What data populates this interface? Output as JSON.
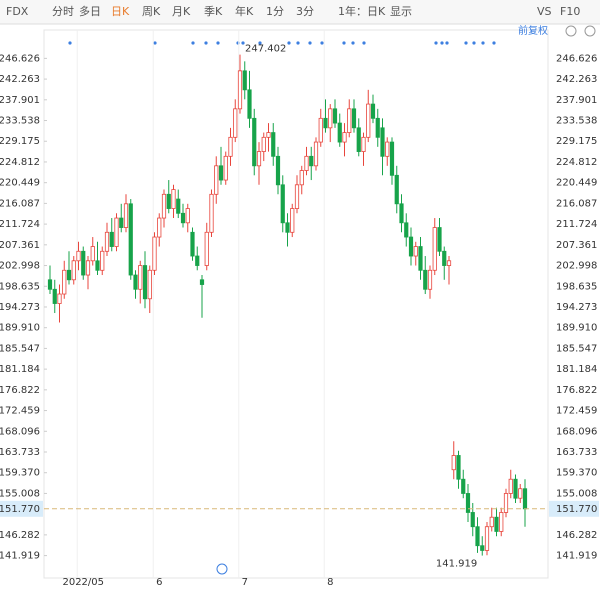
{
  "toolbar": [
    "FDX",
    "分时",
    "多日",
    "日K",
    "周K",
    "月K",
    "季K",
    "年K",
    "1分",
    "3分",
    "1年：日K",
    "显示",
    "VS",
    "F10"
  ],
  "active_tab": "日K",
  "chart_data": {
    "type": "candlestick",
    "adjust_label": "前复权",
    "up_color": "#e8453c",
    "down_color": "#17a34a",
    "ylim": [
      137.2,
      252.6
    ],
    "yticks": [
      246.626,
      242.263,
      237.901,
      233.538,
      229.175,
      224.812,
      220.449,
      216.087,
      211.724,
      207.361,
      202.998,
      198.635,
      194.273,
      {
        "value": 189.91,
        "label": "189.910"
      },
      185.547,
      181.184,
      176.822,
      172.459,
      168.096,
      163.733,
      {
        "value": 159.37,
        "label": "159.370"
      },
      155.008,
      146.282,
      141.919
    ],
    "last_price": {
      "value": 151.77,
      "label": "151.770"
    },
    "categories": [
      null,
      null,
      null,
      null,
      null,
      null,
      null,
      "2022/05",
      null,
      null,
      null,
      null,
      null,
      null,
      null,
      null,
      null,
      null,
      null,
      null,
      null,
      null,
      null,
      "6",
      null,
      null,
      null,
      null,
      null,
      null,
      null,
      null,
      null,
      null,
      null,
      null,
      null,
      null,
      null,
      null,
      null,
      "7",
      null,
      null,
      null,
      null,
      null,
      null,
      null,
      null,
      null,
      null,
      null,
      null,
      null,
      null,
      null,
      null,
      null,
      "8",
      null,
      null,
      null,
      null,
      null,
      null,
      null,
      null,
      null,
      null,
      null,
      null,
      null,
      null,
      null,
      null,
      null,
      null,
      null,
      null,
      null,
      null,
      null,
      null,
      null,
      null,
      null,
      null,
      null,
      null,
      null,
      null,
      null,
      null,
      null,
      null,
      null,
      null,
      null,
      null,
      null
    ],
    "candles": [
      [
        200,
        203,
        197,
        198
      ],
      [
        198,
        200,
        193,
        195
      ],
      [
        195,
        199,
        191,
        197
      ],
      [
        197,
        204,
        196,
        202
      ],
      [
        202,
        206,
        199,
        200
      ],
      [
        200,
        205,
        199,
        204
      ],
      [
        204,
        208,
        202,
        206
      ],
      [
        206,
        207,
        200,
        201
      ],
      [
        201,
        205,
        198,
        204
      ],
      [
        204,
        209,
        203,
        207
      ],
      [
        204,
        208,
        201,
        202
      ],
      [
        202,
        207,
        201,
        206
      ],
      [
        206,
        212,
        205,
        210
      ],
      [
        210,
        213,
        206,
        207
      ],
      [
        207,
        214,
        206,
        213
      ],
      [
        213,
        216,
        210,
        211
      ],
      [
        211,
        218,
        210,
        216
      ],
      [
        216,
        217,
        200,
        201
      ],
      [
        201,
        202,
        196,
        198
      ],
      [
        198,
        204,
        195,
        203
      ],
      [
        203,
        206,
        194,
        196
      ],
      [
        196,
        203,
        193,
        202
      ],
      [
        202,
        210,
        201,
        209
      ],
      [
        209,
        214,
        207,
        213
      ],
      [
        213,
        219,
        211,
        218
      ],
      [
        218,
        221,
        214,
        215
      ],
      [
        215,
        220,
        213,
        219
      ],
      [
        217,
        219,
        213,
        214
      ],
      [
        214,
        216,
        211,
        212
      ],
      [
        212,
        216,
        210,
        215
      ],
      [
        210,
        211,
        204,
        205
      ],
      [
        205,
        207,
        202,
        203
      ],
      [
        200,
        201,
        192,
        199
      ],
      [
        203,
        212,
        202,
        210
      ],
      [
        210,
        219,
        209,
        218
      ],
      [
        218,
        226,
        216,
        224
      ],
      [
        224,
        228,
        220,
        221
      ],
      [
        221,
        227,
        220,
        226
      ],
      [
        226,
        232,
        224,
        230
      ],
      [
        230,
        238,
        229,
        236
      ],
      [
        236,
        247.402,
        235,
        244
      ],
      [
        244,
        246,
        238,
        240
      ],
      [
        240,
        244,
        232,
        234
      ],
      [
        234,
        236,
        222,
        224
      ],
      [
        224,
        229,
        220,
        227
      ],
      [
        227,
        231,
        225,
        230
      ],
      [
        230,
        233,
        227,
        231
      ],
      [
        231,
        233,
        224,
        226
      ],
      [
        226,
        228,
        218,
        220
      ],
      [
        220,
        222,
        210,
        212
      ],
      [
        212,
        214,
        207,
        210
      ],
      [
        210,
        216,
        209,
        215
      ],
      [
        215,
        222,
        214,
        220
      ],
      [
        220,
        224,
        218,
        223
      ],
      [
        223,
        228,
        222,
        226
      ],
      [
        226,
        228,
        221,
        224
      ],
      [
        224,
        230,
        223,
        229
      ],
      [
        229,
        236,
        228,
        234
      ],
      [
        234,
        238,
        231,
        232
      ],
      [
        232,
        237,
        229,
        236
      ],
      [
        236,
        238,
        232,
        233
      ],
      [
        233,
        235,
        228,
        229
      ],
      [
        229,
        233,
        226,
        231
      ],
      [
        231,
        238,
        230,
        236
      ],
      [
        236,
        238,
        231,
        232
      ],
      [
        232,
        234,
        226,
        227
      ],
      [
        227,
        231,
        224,
        230
      ],
      [
        230,
        240,
        229,
        237
      ],
      [
        237,
        239,
        233,
        234
      ],
      [
        234,
        236,
        228,
        230
      ],
      [
        232,
        234,
        222,
        226
      ],
      [
        226,
        230,
        224,
        229
      ],
      [
        229,
        230,
        220,
        222
      ],
      [
        222,
        224,
        214,
        216
      ],
      [
        216,
        218,
        210,
        212
      ],
      [
        212,
        214,
        207,
        209
      ],
      [
        209,
        211,
        203,
        205
      ],
      [
        205,
        208,
        203,
        207
      ],
      [
        207,
        209,
        200,
        202
      ],
      [
        202,
        205,
        197,
        198
      ],
      [
        198,
        203,
        196,
        202
      ],
      [
        202,
        213,
        201,
        211
      ],
      [
        211,
        213,
        205,
        206
      ],
      [
        206,
        207,
        200,
        203
      ],
      [
        203,
        205,
        199,
        204
      ],
      [
        160,
        166,
        158,
        163
      ],
      [
        163,
        164,
        156,
        158
      ],
      [
        158,
        160,
        154,
        155
      ],
      [
        155,
        157,
        149,
        151
      ],
      [
        151,
        153,
        146,
        148
      ],
      [
        148,
        150,
        142.5,
        144
      ],
      [
        144,
        146,
        141.919,
        143
      ],
      [
        143,
        149,
        142,
        148
      ],
      [
        148,
        152,
        147,
        150
      ],
      [
        150,
        152,
        146,
        147
      ],
      [
        147,
        152,
        146,
        151
      ],
      [
        151,
        156,
        150,
        155
      ],
      [
        155,
        160,
        154,
        158
      ],
      [
        158,
        159,
        153,
        154
      ],
      [
        154,
        157,
        153,
        156
      ],
      [
        156,
        158,
        148,
        151.77
      ]
    ]
  }
}
